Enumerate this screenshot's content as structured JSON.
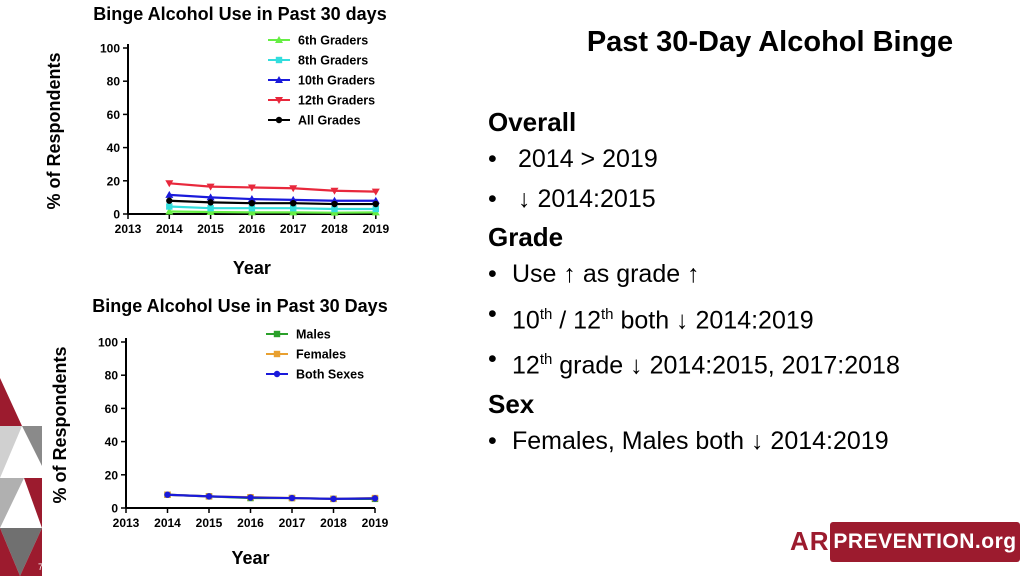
{
  "slide": {
    "title": "Past 30-Day Alcohol Binge",
    "page_number": "7",
    "logo": {
      "prefix": "AR",
      "text": "PREVENTION.org"
    }
  },
  "bullets": {
    "overall_heading": "Overall",
    "overall": [
      "2014 > 2019",
      "↓ 2014:2015"
    ],
    "grade_heading": "Grade",
    "grade_use": "Use ↑ as grade ↑",
    "grade_b2_pre": "10",
    "grade_b2_sup1": "th",
    "grade_b2_mid": " / 12",
    "grade_b2_sup2": "th",
    "grade_b2_post": " both ↓ 2014:2019",
    "grade_b3_pre": "12",
    "grade_b3_sup": "th",
    "grade_b3_post": " grade ↓ 2014:2015, 2017:2018",
    "sex_heading": "Sex",
    "sex": [
      "Females, Males both ↓ 2014:2019"
    ]
  },
  "chart_data": [
    {
      "type": "line",
      "title": "Binge Alcohol Use in Past 30 days",
      "xlabel": "Year",
      "ylabel": "% of Respondents",
      "categories": [
        "2013",
        "2014",
        "2015",
        "2016",
        "2017",
        "2018",
        "2019"
      ],
      "yticks": [
        0,
        20,
        40,
        60,
        80,
        100
      ],
      "ylim": [
        0,
        100
      ],
      "legend": "top-right",
      "series": [
        {
          "name": "6th Graders",
          "color": "#66ee44",
          "marker": "triangle",
          "values": [
            null,
            1.5,
            1.2,
            1.0,
            1.0,
            0.8,
            1.0
          ]
        },
        {
          "name": "8th Graders",
          "color": "#33dddd",
          "marker": "square",
          "values": [
            null,
            4.5,
            3.5,
            3.5,
            3.5,
            3.0,
            3.0
          ]
        },
        {
          "name": "10th Graders",
          "color": "#1a1adb",
          "marker": "triangle",
          "values": [
            null,
            11.5,
            10.0,
            9.0,
            8.5,
            8.0,
            8.0
          ]
        },
        {
          "name": "12th Graders",
          "color": "#e8283c",
          "marker": "triangle-down",
          "values": [
            null,
            18.5,
            16.5,
            16.0,
            15.5,
            14.0,
            13.5
          ]
        },
        {
          "name": "All Grades",
          "color": "#000000",
          "marker": "circle",
          "values": [
            null,
            8.0,
            7.0,
            6.5,
            6.5,
            6.0,
            6.0
          ]
        }
      ]
    },
    {
      "type": "line",
      "title": "Binge Alcohol Use in Past 30 Days",
      "xlabel": "Year",
      "ylabel": "% of Respondents",
      "categories": [
        "2013",
        "2014",
        "2015",
        "2016",
        "2017",
        "2018",
        "2019"
      ],
      "yticks": [
        0,
        20,
        40,
        60,
        80,
        100
      ],
      "ylim": [
        0,
        100
      ],
      "legend": "top-right",
      "series": [
        {
          "name": "Males",
          "color": "#2aa02a",
          "marker": "square",
          "values": [
            null,
            8.0,
            7.0,
            6.0,
            6.0,
            5.5,
            5.5
          ]
        },
        {
          "name": "Females",
          "color": "#e8a030",
          "marker": "square",
          "values": [
            null,
            8.0,
            7.0,
            6.5,
            6.0,
            5.5,
            6.0
          ]
        },
        {
          "name": "Both Sexes",
          "color": "#1a1adb",
          "marker": "circle",
          "values": [
            null,
            8.0,
            7.0,
            6.3,
            6.0,
            5.5,
            5.8
          ]
        }
      ]
    }
  ]
}
